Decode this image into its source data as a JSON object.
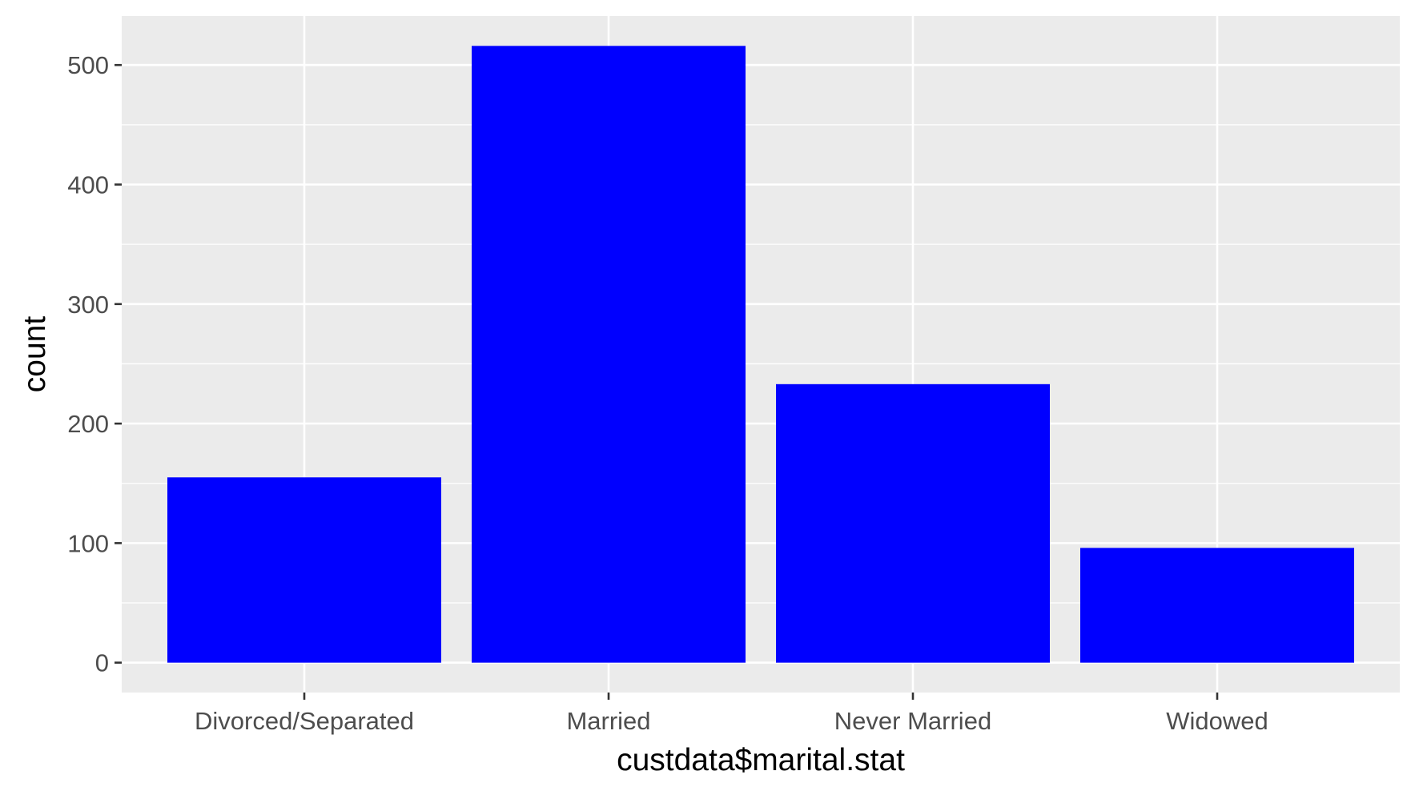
{
  "chart_data": {
    "type": "bar",
    "categories": [
      "Divorced/Separated",
      "Married",
      "Never Married",
      "Widowed"
    ],
    "values": [
      155,
      516,
      233,
      96
    ],
    "xlabel": "custdata$marital.stat",
    "ylabel": "count",
    "ylim": [
      -25,
      541
    ],
    "yticks": [
      0,
      100,
      200,
      300,
      400,
      500
    ],
    "grid": true,
    "bar_color": "#0000ff",
    "panel_background": "#ebebeb",
    "grid_color": "#ffffff"
  }
}
